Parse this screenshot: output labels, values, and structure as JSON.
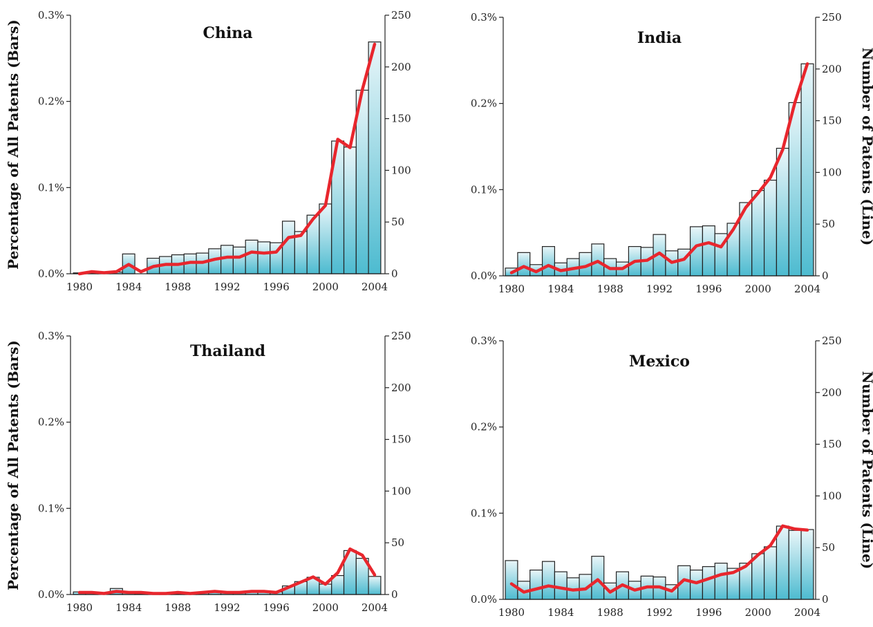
{
  "colors": {
    "line": "#e8262d",
    "bar_top": "#eaf6f9",
    "bar_bottom": "#4dbbd0",
    "bar_stroke": "#222222"
  },
  "chart_data": [
    {
      "type": "bar",
      "title": "China",
      "ylabel": "Percentage of All Patents (Bars)",
      "y2label": "",
      "x": [
        1980,
        1981,
        1982,
        1983,
        1984,
        1985,
        1986,
        1987,
        1988,
        1989,
        1990,
        1991,
        1992,
        1993,
        1994,
        1995,
        1996,
        1997,
        1998,
        1999,
        2000,
        2001,
        2002,
        2003,
        2004
      ],
      "xticks": [
        "1980",
        "1984",
        "1988",
        "1992",
        "1996",
        "2000",
        "2004"
      ],
      "ylim": [
        0,
        0.3
      ],
      "yticks": [
        "0.0%",
        "0.1%",
        "0.2%",
        "0.3%"
      ],
      "y2lim": [
        0,
        250
      ],
      "y2ticks": [
        "0",
        "50",
        "100",
        "150",
        "200",
        "250"
      ],
      "series": [
        {
          "values": [
            0.001,
            0.001,
            0.001,
            0.002,
            0.023,
            0.0,
            0.018,
            0.02,
            0.022,
            0.023,
            0.024,
            0.029,
            0.033,
            0.031,
            0.039,
            0.037,
            0.036,
            0.061,
            0.049,
            0.068,
            0.081,
            0.154,
            0.147,
            0.213,
            0.269
          ]
        },
        {
          "values": [
            0,
            2,
            1,
            2,
            9,
            2,
            7,
            9,
            9,
            11,
            11,
            14,
            16,
            16,
            21,
            20,
            21,
            35,
            37,
            53,
            66,
            130,
            122,
            178,
            222
          ]
        }
      ]
    },
    {
      "type": "bar",
      "title": "India",
      "ylabel": "",
      "y2label": "Number of Patents (Line)",
      "x": [
        1980,
        1981,
        1982,
        1983,
        1984,
        1985,
        1986,
        1987,
        1988,
        1989,
        1990,
        1991,
        1992,
        1993,
        1994,
        1995,
        1996,
        1997,
        1998,
        1999,
        2000,
        2001,
        2002,
        2003,
        2004
      ],
      "xticks": [
        "1980",
        "1984",
        "1988",
        "1992",
        "1996",
        "2000",
        "2004"
      ],
      "ylim": [
        0,
        0.3
      ],
      "yticks": [
        "0.0%",
        "0.1%",
        "0.2%",
        "0.3%"
      ],
      "y2lim": [
        0,
        250
      ],
      "y2ticks": [
        "0",
        "50",
        "100",
        "150",
        "200",
        "250"
      ],
      "series": [
        {
          "values": [
            0.009,
            0.027,
            0.013,
            0.034,
            0.015,
            0.02,
            0.027,
            0.037,
            0.02,
            0.016,
            0.034,
            0.033,
            0.048,
            0.029,
            0.031,
            0.057,
            0.058,
            0.049,
            0.061,
            0.085,
            0.099,
            0.111,
            0.148,
            0.201,
            0.246
          ]
        },
        {
          "values": [
            3,
            9,
            4,
            10,
            5,
            7,
            9,
            14,
            7,
            7,
            14,
            15,
            22,
            13,
            16,
            29,
            32,
            28,
            45,
            66,
            80,
            95,
            122,
            168,
            205
          ]
        }
      ]
    },
    {
      "type": "bar",
      "title": "Thailand",
      "ylabel": "Percentage of All Patents (Bars)",
      "y2label": "",
      "x": [
        1980,
        1981,
        1982,
        1983,
        1984,
        1985,
        1986,
        1987,
        1988,
        1989,
        1990,
        1991,
        1992,
        1993,
        1994,
        1995,
        1996,
        1997,
        1998,
        1999,
        2000,
        2001,
        2002,
        2003,
        2004
      ],
      "xticks": [
        "1980",
        "1984",
        "1988",
        "1992",
        "1996",
        "2000",
        "2004"
      ],
      "ylim": [
        0,
        0.3
      ],
      "yticks": [
        "0.0%",
        "0.1%",
        "0.2%",
        "0.3%"
      ],
      "y2lim": [
        0,
        250
      ],
      "y2ticks": [
        "0",
        "50",
        "100",
        "150",
        "200",
        "250"
      ],
      "series": [
        {
          "values": [
            0.003,
            0.002,
            0.0,
            0.007,
            0.002,
            0.001,
            0.001,
            0.001,
            0.001,
            0.001,
            0.002,
            0.004,
            0.002,
            0.003,
            0.003,
            0.003,
            0.003,
            0.01,
            0.015,
            0.02,
            0.012,
            0.022,
            0.051,
            0.042,
            0.021
          ]
        },
        {
          "values": [
            2,
            2,
            1,
            3,
            2,
            2,
            1,
            1,
            2,
            1,
            2,
            3,
            2,
            2,
            3,
            3,
            2,
            7,
            12,
            17,
            10,
            21,
            44,
            38,
            19
          ]
        }
      ]
    },
    {
      "type": "bar",
      "title": "Mexico",
      "ylabel": "",
      "y2label": "Number of Patents (Line)",
      "x": [
        1980,
        1981,
        1982,
        1983,
        1984,
        1985,
        1986,
        1987,
        1988,
        1989,
        1990,
        1991,
        1992,
        1993,
        1994,
        1995,
        1996,
        1997,
        1998,
        1999,
        2000,
        2001,
        2002,
        2003,
        2004
      ],
      "xticks": [
        "1980",
        "1984",
        "1988",
        "1992",
        "1996",
        "2000",
        "2004"
      ],
      "ylim": [
        0,
        0.3
      ],
      "yticks": [
        "0.0%",
        "0.1%",
        "0.2%",
        "0.3%"
      ],
      "y2lim": [
        0,
        250
      ],
      "y2ticks": [
        "0",
        "50",
        "100",
        "150",
        "200",
        "250"
      ],
      "series": [
        {
          "values": [
            0.045,
            0.021,
            0.034,
            0.044,
            0.032,
            0.025,
            0.029,
            0.05,
            0.019,
            0.032,
            0.021,
            0.027,
            0.026,
            0.017,
            0.039,
            0.034,
            0.038,
            0.042,
            0.036,
            0.042,
            0.053,
            0.061,
            0.085,
            0.08,
            0.081
          ]
        },
        {
          "values": [
            15,
            7,
            10,
            13,
            11,
            9,
            10,
            19,
            7,
            14,
            9,
            12,
            12,
            8,
            19,
            16,
            20,
            24,
            26,
            32,
            43,
            52,
            71,
            68,
            67
          ]
        }
      ]
    }
  ]
}
